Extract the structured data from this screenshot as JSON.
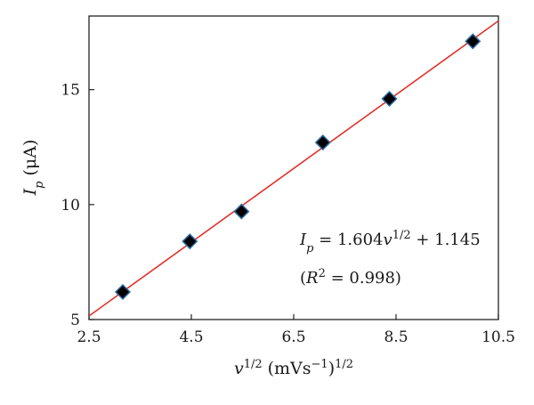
{
  "chart_data": {
    "type": "scatter",
    "x": [
      3.16,
      4.47,
      5.48,
      7.07,
      8.37,
      10.0
    ],
    "y": [
      6.2,
      8.4,
      9.7,
      12.7,
      14.6,
      17.1
    ],
    "fit_line": {
      "slope": 1.604,
      "intercept": 1.145
    },
    "xlim": [
      2.5,
      10.5
    ],
    "ylim": [
      5,
      18.2
    ],
    "x_ticks": [
      "2.5",
      "4.5",
      "6.5",
      "8.5",
      "10.5"
    ],
    "y_ticks": [
      "5",
      "10",
      "15"
    ],
    "xlabel": {
      "base": "v",
      "base_sup": "1/2",
      "unit_open": "(mVs",
      "unit_sup": "−1",
      "unit_close": ")",
      "outer_sup": "1/2"
    },
    "ylabel": {
      "base": "I",
      "sub": "p",
      "unit": "(μA)"
    },
    "annotation": {
      "lhs": "I",
      "lhs_sub": "p",
      "eq_mid": " = 1.604",
      "var": "v",
      "var_sup": "1/2",
      "eq_end": " + 1.145",
      "r_open": "(",
      "r_var": "R",
      "r_sup": "2",
      "r_end": " = 0.998)"
    },
    "grid": false,
    "colors": {
      "marker": "#000000",
      "marker_edge": "#2e6da4",
      "line": "#e0332b",
      "axis": "#222222"
    }
  }
}
